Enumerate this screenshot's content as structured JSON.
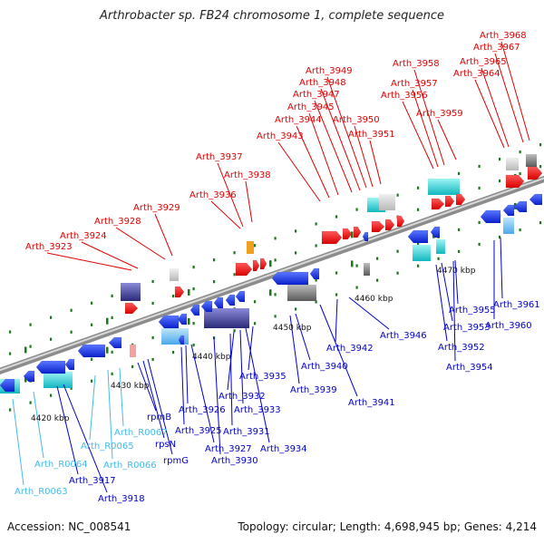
{
  "title": "Arthrobacter sp. FB24 chromosome 1, complete sequence",
  "footer": {
    "accession": "Accession: NC_008541",
    "summary": "Topology: circular; Length: 4,698,945 bp; Genes: 4,214"
  },
  "colors": {
    "top_label": "#e00000",
    "bottom_label": "#0000cc",
    "rna_label": "#44bbee",
    "backbone": "#8c8c8c",
    "tick": "#1a7a1a"
  },
  "kbp_labels": [
    "4420 kbp",
    "4430 kbp",
    "4440 kbp",
    "4450 kbp",
    "4460 kbp",
    "4470 kbp"
  ],
  "top_genes": [
    "Arth_3923",
    "Arth_3924",
    "Arth_3928",
    "Arth_3929",
    "Arth_3936",
    "Arth_3937",
    "Arth_3938",
    "Arth_3943",
    "Arth_3944",
    "Arth_3945",
    "Arth_3947",
    "Arth_3948",
    "Arth_3949",
    "Arth_3950",
    "Arth_3951",
    "Arth_3956",
    "Arth_3957",
    "Arth_3958",
    "Arth_3959",
    "Arth_3964",
    "Arth_3965",
    "Arth_3967",
    "Arth_3968"
  ],
  "bottom_genes": [
    "Arth_R0063",
    "Arth_R0064",
    "Arth_3917",
    "Arth_3918",
    "Arth_R0065",
    "Arth_R0066",
    "Arth_R0067",
    "rpmB",
    "rpsN",
    "rpmG",
    "Arth_3925",
    "Arth_3926",
    "Arth_3927",
    "Arth_3930",
    "Arth_3931",
    "Arth_3932",
    "Arth_3933",
    "Arth_3934",
    "Arth_3935",
    "Arth_3939",
    "Arth_3940",
    "Arth_3941",
    "Arth_3942",
    "Arth_3946",
    "Arth_3952",
    "Arth_3953",
    "Arth_3954",
    "Arth_3955",
    "Arth_3960",
    "Arth_3961"
  ]
}
